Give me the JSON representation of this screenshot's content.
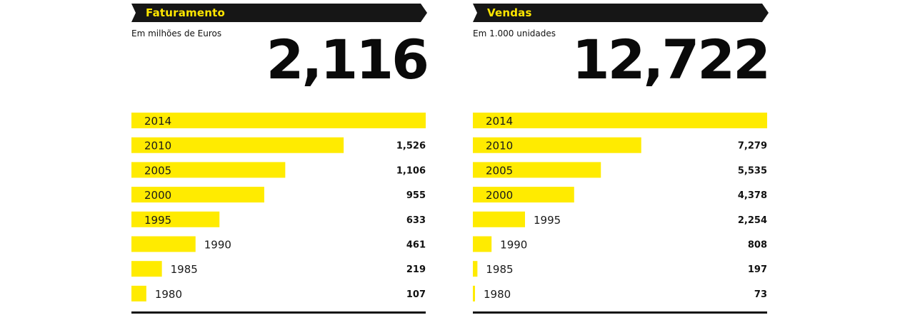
{
  "chart_data": [
    {
      "type": "bar",
      "title": "Faturamento",
      "subtitle": "Em milhões de Euros",
      "headline": "2,116",
      "orientation": "horizontal",
      "max_value": 2116,
      "bar_color": "#ffeb00",
      "categories": [
        "2014",
        "2010",
        "2005",
        "2000",
        "1995",
        "1990",
        "1985",
        "1980"
      ],
      "values": [
        2116,
        1526,
        1106,
        955,
        633,
        461,
        219,
        107
      ],
      "value_labels": [
        "",
        "1,526",
        "1,106",
        "955",
        "633",
        "461",
        "219",
        "107"
      ]
    },
    {
      "type": "bar",
      "title": "Vendas",
      "subtitle": "Em 1.000 unidades",
      "headline": "12,722",
      "orientation": "horizontal",
      "max_value": 12722,
      "bar_color": "#ffeb00",
      "categories": [
        "2014",
        "2010",
        "2005",
        "2000",
        "1995",
        "1990",
        "1985",
        "1980"
      ],
      "values": [
        12722,
        7279,
        5535,
        4378,
        2254,
        808,
        197,
        73
      ],
      "value_labels": [
        "",
        "7,279",
        "5,535",
        "4,378",
        "2,254",
        "808",
        "197",
        "73"
      ]
    }
  ]
}
